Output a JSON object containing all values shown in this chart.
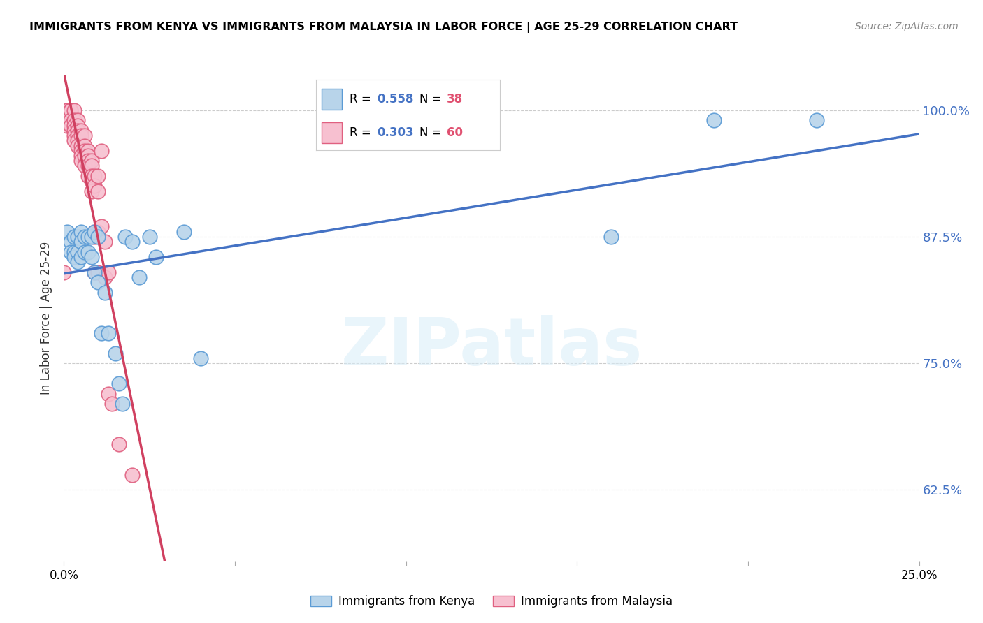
{
  "title": "IMMIGRANTS FROM KENYA VS IMMIGRANTS FROM MALAYSIA IN LABOR FORCE | AGE 25-29 CORRELATION CHART",
  "source": "Source: ZipAtlas.com",
  "ylabel": "In Labor Force | Age 25-29",
  "xlim": [
    0.0,
    0.25
  ],
  "ylim": [
    0.555,
    1.035
  ],
  "ytick_vals": [
    0.625,
    0.75,
    0.875,
    1.0
  ],
  "ytick_labels": [
    "62.5%",
    "75.0%",
    "87.5%",
    "100.0%"
  ],
  "xtick_vals": [
    0.0,
    0.05,
    0.1,
    0.15,
    0.2,
    0.25
  ],
  "xtick_labels": [
    "0.0%",
    "",
    "",
    "",
    "",
    "25.0%"
  ],
  "kenya_color_face": "#b8d4ea",
  "kenya_color_edge": "#5b9bd5",
  "malaysia_color_face": "#f7c0d0",
  "malaysia_color_edge": "#e06080",
  "trend_kenya_color": "#4472c4",
  "trend_malaysia_color": "#d04060",
  "kenya_R": "0.558",
  "kenya_N": "38",
  "malaysia_R": "0.303",
  "malaysia_N": "60",
  "kenya_x": [
    0.001,
    0.002,
    0.002,
    0.003,
    0.003,
    0.003,
    0.004,
    0.004,
    0.004,
    0.005,
    0.005,
    0.005,
    0.006,
    0.006,
    0.007,
    0.007,
    0.008,
    0.008,
    0.009,
    0.009,
    0.01,
    0.01,
    0.011,
    0.012,
    0.013,
    0.015,
    0.016,
    0.017,
    0.018,
    0.02,
    0.022,
    0.025,
    0.027,
    0.035,
    0.04,
    0.16,
    0.19,
    0.22
  ],
  "kenya_y": [
    0.88,
    0.87,
    0.86,
    0.875,
    0.86,
    0.855,
    0.875,
    0.86,
    0.85,
    0.88,
    0.87,
    0.855,
    0.875,
    0.86,
    0.875,
    0.86,
    0.875,
    0.855,
    0.88,
    0.84,
    0.875,
    0.83,
    0.78,
    0.82,
    0.78,
    0.76,
    0.73,
    0.71,
    0.875,
    0.87,
    0.835,
    0.875,
    0.855,
    0.88,
    0.755,
    0.875,
    0.99,
    0.99
  ],
  "malaysia_x": [
    0.0,
    0.001,
    0.001,
    0.001,
    0.001,
    0.002,
    0.002,
    0.002,
    0.002,
    0.003,
    0.003,
    0.003,
    0.003,
    0.003,
    0.003,
    0.004,
    0.004,
    0.004,
    0.004,
    0.004,
    0.004,
    0.005,
    0.005,
    0.005,
    0.005,
    0.005,
    0.005,
    0.006,
    0.006,
    0.006,
    0.006,
    0.006,
    0.007,
    0.007,
    0.007,
    0.007,
    0.007,
    0.008,
    0.008,
    0.008,
    0.008,
    0.008,
    0.009,
    0.009,
    0.009,
    0.009,
    0.009,
    0.01,
    0.01,
    0.01,
    0.01,
    0.011,
    0.011,
    0.012,
    0.012,
    0.013,
    0.013,
    0.014,
    0.016,
    0.02
  ],
  "malaysia_y": [
    0.84,
    1.0,
    1.0,
    0.99,
    0.985,
    1.0,
    1.0,
    0.99,
    0.985,
    1.0,
    0.99,
    0.985,
    0.98,
    0.975,
    0.97,
    0.99,
    0.985,
    0.98,
    0.975,
    0.97,
    0.965,
    0.98,
    0.975,
    0.965,
    0.96,
    0.955,
    0.95,
    0.975,
    0.965,
    0.96,
    0.955,
    0.945,
    0.96,
    0.955,
    0.95,
    0.945,
    0.935,
    0.95,
    0.945,
    0.935,
    0.93,
    0.92,
    0.935,
    0.925,
    0.88,
    0.875,
    0.84,
    0.935,
    0.92,
    0.88,
    0.84,
    0.96,
    0.885,
    0.87,
    0.835,
    0.84,
    0.72,
    0.71,
    0.67,
    0.64
  ],
  "watermark_text": "ZIPatlas",
  "legend_r_color": "#4472c4",
  "legend_n_color": "#e05070"
}
